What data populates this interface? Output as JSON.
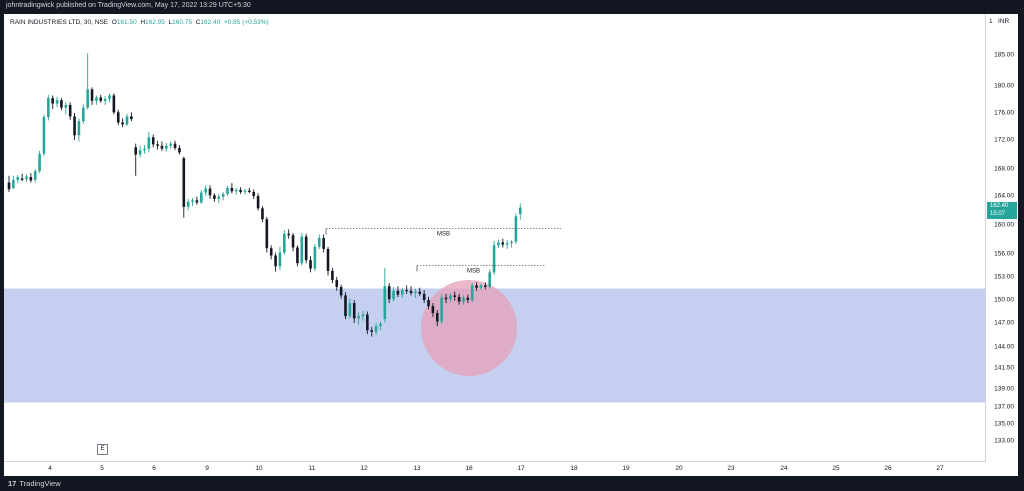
{
  "header": {
    "publisher": "johntradingwick published on TradingView.com, May 17, 2022 13:29 UTC+5:30"
  },
  "symbol": {
    "name": "RAIN INDUSTRIES LTD, 30, NSE",
    "o_label": "O",
    "o": "161.50",
    "h_label": "H",
    "h": "162.95",
    "l_label": "L",
    "l": "160.75",
    "c_label": "C",
    "c": "162.40",
    "change": "+0.85 (+0.53%)"
  },
  "price_tag": {
    "price": "162.40",
    "countdown": "15:07"
  },
  "currency": "INR",
  "footer": {
    "brand": "TradingView",
    "logo": "17"
  },
  "event_marker": "E",
  "colors": {
    "up": "#26a69a",
    "down": "#131722",
    "zone": "#c5d0f0",
    "circle": "#e6a0b8"
  },
  "chart_data": {
    "type": "candlestick",
    "title": "RAIN INDUSTRIES LTD, 30, NSE",
    "y_ticks": [
      "185.00",
      "180.00",
      "176.00",
      "172.00",
      "168.00",
      "164.00",
      "160.00",
      "156.00",
      "153.00",
      "150.00",
      "147.00",
      "144.00",
      "141.50",
      "139.00",
      "137.00",
      "135.00",
      "133.00"
    ],
    "x_ticks": [
      "4",
      "5",
      "6",
      "9",
      "10",
      "11",
      "12",
      "13",
      "16",
      "17",
      "18",
      "19",
      "20",
      "23",
      "24",
      "25",
      "26",
      "27"
    ],
    "price_axis_top": "1",
    "zone": {
      "low": 137.5,
      "high": 151.5
    },
    "annotations": [
      {
        "label": "MSB",
        "price": 159.5
      },
      {
        "label": "MSB",
        "price": 154.5
      }
    ],
    "candles": [
      {
        "o": 166,
        "h": 167.0,
        "l": 164.6,
        "c": 165.0
      },
      {
        "o": 165.2,
        "h": 167.0,
        "l": 165.0,
        "c": 166.4
      },
      {
        "o": 166.4,
        "h": 167.1,
        "l": 165.9,
        "c": 166.8
      },
      {
        "o": 166.6,
        "h": 167.3,
        "l": 166.2,
        "c": 166.4
      },
      {
        "o": 166.5,
        "h": 167.2,
        "l": 166.1,
        "c": 166.9
      },
      {
        "o": 166.8,
        "h": 167.4,
        "l": 166.0,
        "c": 166.3
      },
      {
        "o": 166.4,
        "h": 168.0,
        "l": 166.0,
        "c": 167.7
      },
      {
        "o": 167.7,
        "h": 170.5,
        "l": 167.4,
        "c": 170.1
      },
      {
        "o": 170.1,
        "h": 175.8,
        "l": 169.8,
        "c": 175.4
      },
      {
        "o": 175.4,
        "h": 178.7,
        "l": 174.9,
        "c": 178.2
      },
      {
        "o": 178.2,
        "h": 178.6,
        "l": 176.6,
        "c": 177.4
      },
      {
        "o": 177.4,
        "h": 178.4,
        "l": 176.9,
        "c": 177.9
      },
      {
        "o": 177.9,
        "h": 178.2,
        "l": 176.4,
        "c": 176.8
      },
      {
        "o": 176.8,
        "h": 177.6,
        "l": 175.8,
        "c": 177.2
      },
      {
        "o": 177.2,
        "h": 177.6,
        "l": 175.0,
        "c": 175.5
      },
      {
        "o": 175.5,
        "h": 176.0,
        "l": 172.0,
        "c": 172.7
      },
      {
        "o": 172.7,
        "h": 175.2,
        "l": 171.8,
        "c": 174.8
      },
      {
        "o": 174.8,
        "h": 177.3,
        "l": 174.4,
        "c": 176.8
      },
      {
        "o": 176.8,
        "h": 185.3,
        "l": 176.5,
        "c": 179.5
      },
      {
        "o": 179.5,
        "h": 179.8,
        "l": 177.2,
        "c": 177.8
      },
      {
        "o": 177.8,
        "h": 178.6,
        "l": 177.2,
        "c": 178.3
      },
      {
        "o": 178.3,
        "h": 178.7,
        "l": 177.5,
        "c": 177.8
      },
      {
        "o": 177.8,
        "h": 178.5,
        "l": 177.2,
        "c": 178.1
      },
      {
        "o": 178.1,
        "h": 178.9,
        "l": 177.6,
        "c": 178.6
      },
      {
        "o": 178.6,
        "h": 178.9,
        "l": 175.8,
        "c": 176.1
      },
      {
        "o": 176.1,
        "h": 176.5,
        "l": 174.2,
        "c": 174.6
      },
      {
        "o": 174.6,
        "h": 175.2,
        "l": 173.9,
        "c": 174.3
      },
      {
        "o": 174.3,
        "h": 175.9,
        "l": 174.1,
        "c": 175.5
      },
      {
        "o": 175.5,
        "h": 176.1,
        "l": 174.8,
        "c": 175.1
      },
      {
        "o": 171.0,
        "h": 171.5,
        "l": 167.0,
        "c": 170.0
      },
      {
        "o": 170.0,
        "h": 171.2,
        "l": 169.6,
        "c": 170.6
      },
      {
        "o": 170.6,
        "h": 171.3,
        "l": 170.1,
        "c": 170.8
      },
      {
        "o": 170.8,
        "h": 173.2,
        "l": 170.3,
        "c": 172.4
      },
      {
        "o": 172.4,
        "h": 172.8,
        "l": 171.0,
        "c": 171.4
      },
      {
        "o": 171.4,
        "h": 171.9,
        "l": 170.7,
        "c": 171.2
      },
      {
        "o": 171.2,
        "h": 171.8,
        "l": 170.5,
        "c": 170.8
      },
      {
        "o": 170.8,
        "h": 171.6,
        "l": 170.4,
        "c": 171.2
      },
      {
        "o": 171.2,
        "h": 171.8,
        "l": 170.8,
        "c": 171.5
      },
      {
        "o": 171.5,
        "h": 171.9,
        "l": 170.6,
        "c": 170.9
      },
      {
        "o": 170.9,
        "h": 171.3,
        "l": 170.0,
        "c": 170.3
      },
      {
        "o": 169.5,
        "h": 169.7,
        "l": 161.0,
        "c": 162.5
      },
      {
        "o": 162.5,
        "h": 163.6,
        "l": 162.0,
        "c": 163.2
      },
      {
        "o": 163.2,
        "h": 163.7,
        "l": 162.6,
        "c": 163.4
      },
      {
        "o": 163.4,
        "h": 163.9,
        "l": 162.8,
        "c": 163.1
      },
      {
        "o": 163.1,
        "h": 164.9,
        "l": 162.9,
        "c": 164.5
      },
      {
        "o": 164.5,
        "h": 165.6,
        "l": 164.0,
        "c": 165.1
      },
      {
        "o": 165.1,
        "h": 165.6,
        "l": 163.6,
        "c": 164.1
      },
      {
        "o": 164.1,
        "h": 164.4,
        "l": 163.2,
        "c": 163.6
      },
      {
        "o": 163.6,
        "h": 164.3,
        "l": 163.0,
        "c": 163.9
      },
      {
        "o": 163.9,
        "h": 164.6,
        "l": 163.4,
        "c": 164.3
      },
      {
        "o": 164.3,
        "h": 165.5,
        "l": 164.0,
        "c": 165.2
      },
      {
        "o": 165.2,
        "h": 165.9,
        "l": 164.4,
        "c": 164.7
      },
      {
        "o": 164.7,
        "h": 165.2,
        "l": 164.2,
        "c": 164.9
      },
      {
        "o": 164.9,
        "h": 165.3,
        "l": 164.3,
        "c": 164.6
      },
      {
        "o": 164.6,
        "h": 165.1,
        "l": 164.2,
        "c": 164.8
      },
      {
        "o": 164.8,
        "h": 165.2,
        "l": 164.4,
        "c": 164.6
      },
      {
        "o": 164.6,
        "h": 165.0,
        "l": 163.6,
        "c": 164.0
      },
      {
        "o": 164.0,
        "h": 164.4,
        "l": 162.0,
        "c": 162.3
      },
      {
        "o": 162.3,
        "h": 162.6,
        "l": 160.4,
        "c": 160.8
      },
      {
        "o": 160.8,
        "h": 161.1,
        "l": 156.2,
        "c": 156.8
      },
      {
        "o": 156.8,
        "h": 157.2,
        "l": 155.3,
        "c": 155.8
      },
      {
        "o": 155.8,
        "h": 156.2,
        "l": 153.7,
        "c": 154.4
      },
      {
        "o": 154.4,
        "h": 157.0,
        "l": 153.9,
        "c": 156.2
      },
      {
        "o": 156.2,
        "h": 159.3,
        "l": 155.9,
        "c": 158.8
      },
      {
        "o": 158.8,
        "h": 159.4,
        "l": 158.1,
        "c": 158.6
      },
      {
        "o": 158.6,
        "h": 158.9,
        "l": 156.4,
        "c": 156.9
      },
      {
        "o": 156.9,
        "h": 157.2,
        "l": 154.4,
        "c": 154.8
      },
      {
        "o": 154.8,
        "h": 158.9,
        "l": 154.5,
        "c": 158.4
      },
      {
        "o": 158.4,
        "h": 158.8,
        "l": 154.8,
        "c": 155.2
      },
      {
        "o": 155.2,
        "h": 155.7,
        "l": 153.6,
        "c": 154.1
      },
      {
        "o": 154.1,
        "h": 157.4,
        "l": 153.8,
        "c": 157.0
      },
      {
        "o": 157.0,
        "h": 158.7,
        "l": 156.7,
        "c": 158.2
      },
      {
        "o": 158.2,
        "h": 158.7,
        "l": 156.2,
        "c": 156.7
      },
      {
        "o": 156.7,
        "h": 157.0,
        "l": 153.2,
        "c": 153.8
      },
      {
        "o": 153.8,
        "h": 154.2,
        "l": 152.2,
        "c": 152.6
      },
      {
        "o": 152.6,
        "h": 153.0,
        "l": 151.2,
        "c": 151.7
      },
      {
        "o": 151.7,
        "h": 152.0,
        "l": 150.2,
        "c": 150.6
      },
      {
        "o": 150.6,
        "h": 151.0,
        "l": 147.5,
        "c": 147.9
      },
      {
        "o": 147.9,
        "h": 150.2,
        "l": 147.6,
        "c": 149.6
      },
      {
        "o": 149.6,
        "h": 150.0,
        "l": 147.0,
        "c": 147.6
      },
      {
        "o": 147.6,
        "h": 148.4,
        "l": 146.8,
        "c": 147.9
      },
      {
        "o": 147.9,
        "h": 148.6,
        "l": 147.3,
        "c": 148.1
      },
      {
        "o": 148.1,
        "h": 148.5,
        "l": 145.6,
        "c": 146.1
      },
      {
        "o": 146.1,
        "h": 146.5,
        "l": 145.3,
        "c": 145.9
      },
      {
        "o": 145.9,
        "h": 147.0,
        "l": 145.5,
        "c": 146.6
      },
      {
        "o": 146.6,
        "h": 147.2,
        "l": 146.1,
        "c": 146.9
      },
      {
        "o": 147.5,
        "h": 154.2,
        "l": 147.1,
        "c": 151.8
      },
      {
        "o": 151.8,
        "h": 152.2,
        "l": 149.6,
        "c": 150.1
      },
      {
        "o": 150.1,
        "h": 151.7,
        "l": 149.8,
        "c": 151.2
      },
      {
        "o": 151.2,
        "h": 151.8,
        "l": 150.4,
        "c": 150.7
      },
      {
        "o": 150.7,
        "h": 151.6,
        "l": 150.3,
        "c": 151.3
      },
      {
        "o": 151.3,
        "h": 151.9,
        "l": 150.8,
        "c": 151.2
      },
      {
        "o": 151.2,
        "h": 151.8,
        "l": 150.6,
        "c": 150.9
      },
      {
        "o": 150.9,
        "h": 151.5,
        "l": 150.3,
        "c": 151.1
      },
      {
        "o": 151.1,
        "h": 151.6,
        "l": 150.5,
        "c": 150.8
      },
      {
        "o": 150.8,
        "h": 151.3,
        "l": 149.6,
        "c": 150.0
      },
      {
        "o": 150.0,
        "h": 150.4,
        "l": 148.8,
        "c": 149.2
      },
      {
        "o": 149.2,
        "h": 149.6,
        "l": 147.8,
        "c": 148.3
      },
      {
        "o": 148.3,
        "h": 148.7,
        "l": 146.6,
        "c": 147.2
      },
      {
        "o": 147.2,
        "h": 150.7,
        "l": 146.9,
        "c": 150.3
      },
      {
        "o": 150.3,
        "h": 150.8,
        "l": 149.6,
        "c": 150.1
      },
      {
        "o": 150.1,
        "h": 150.9,
        "l": 149.7,
        "c": 150.6
      },
      {
        "o": 150.6,
        "h": 151.1,
        "l": 149.9,
        "c": 150.4
      },
      {
        "o": 150.4,
        "h": 150.8,
        "l": 149.4,
        "c": 149.8
      },
      {
        "o": 149.8,
        "h": 150.6,
        "l": 149.4,
        "c": 150.3
      },
      {
        "o": 150.3,
        "h": 150.7,
        "l": 149.6,
        "c": 150.0
      },
      {
        "o": 150.0,
        "h": 152.2,
        "l": 149.7,
        "c": 151.9
      },
      {
        "o": 151.9,
        "h": 152.3,
        "l": 151.2,
        "c": 151.6
      },
      {
        "o": 151.6,
        "h": 152.1,
        "l": 151.3,
        "c": 151.9
      },
      {
        "o": 151.9,
        "h": 152.3,
        "l": 151.4,
        "c": 151.7
      },
      {
        "o": 151.7,
        "h": 154.0,
        "l": 151.5,
        "c": 153.6
      },
      {
        "o": 153.6,
        "h": 157.8,
        "l": 153.3,
        "c": 157.2
      },
      {
        "o": 157.2,
        "h": 158.0,
        "l": 156.8,
        "c": 157.6
      },
      {
        "o": 157.6,
        "h": 158.1,
        "l": 156.9,
        "c": 157.3
      },
      {
        "o": 157.3,
        "h": 157.9,
        "l": 156.7,
        "c": 157.5
      },
      {
        "o": 157.5,
        "h": 157.9,
        "l": 156.9,
        "c": 157.7
      },
      {
        "o": 157.7,
        "h": 161.6,
        "l": 157.4,
        "c": 161.2
      },
      {
        "o": 161.5,
        "h": 162.95,
        "l": 160.75,
        "c": 162.4
      }
    ]
  }
}
